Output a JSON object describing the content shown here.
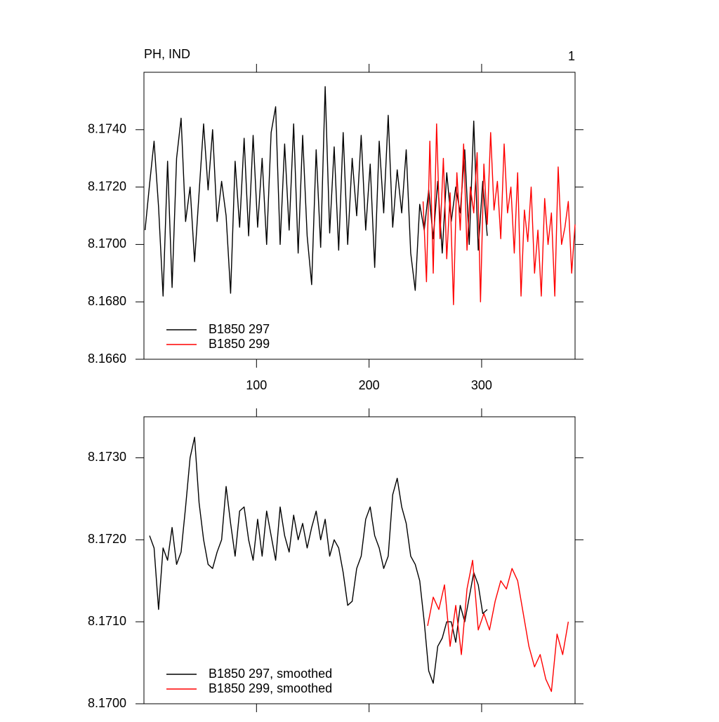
{
  "chart_data": [
    {
      "type": "line",
      "title": "PH, IND",
      "right_title": "1",
      "xlim": [
        0,
        383
      ],
      "ylim": [
        8.166,
        8.176
      ],
      "xticks": [
        100,
        200,
        300
      ],
      "show_xtick_labels": true,
      "yticks": [
        {
          "value": 8.166,
          "label": "8.1660"
        },
        {
          "value": 8.168,
          "label": "8.1680"
        },
        {
          "value": 8.17,
          "label": "8.1700"
        },
        {
          "value": 8.172,
          "label": "8.1720"
        },
        {
          "value": 8.174,
          "label": "8.1740"
        }
      ],
      "series": [
        {
          "name": "B1850 297",
          "color": "#000000",
          "x": [
            1,
            5,
            9,
            13,
            17,
            21,
            25,
            29,
            33,
            37,
            41,
            45,
            49,
            53,
            57,
            61,
            65,
            69,
            73,
            77,
            81,
            85,
            89,
            93,
            97,
            101,
            105,
            109,
            113,
            117,
            121,
            125,
            129,
            133,
            137,
            141,
            145,
            149,
            153,
            157,
            161,
            165,
            169,
            173,
            177,
            181,
            185,
            189,
            193,
            197,
            201,
            205,
            209,
            213,
            217,
            221,
            225,
            229,
            233,
            237,
            241,
            245,
            249,
            253,
            257,
            261,
            265,
            269,
            273,
            277,
            281,
            285,
            289,
            293,
            297,
            301,
            305
          ],
          "values": [
            8.1705,
            8.1721,
            8.1736,
            8.1713,
            8.1682,
            8.1729,
            8.1685,
            8.173,
            8.1744,
            8.1708,
            8.172,
            8.1694,
            8.1718,
            8.1742,
            8.1719,
            8.174,
            8.1708,
            8.1722,
            8.171,
            8.1683,
            8.1729,
            8.1706,
            8.1737,
            8.1703,
            8.1738,
            8.1706,
            8.173,
            8.17,
            8.1739,
            8.1748,
            8.17,
            8.1735,
            8.1705,
            8.1742,
            8.1697,
            8.1738,
            8.1703,
            8.1686,
            8.1733,
            8.1699,
            8.1755,
            8.1704,
            8.1734,
            8.1698,
            8.1739,
            8.17,
            8.173,
            8.171,
            8.1738,
            8.1705,
            8.1728,
            8.1692,
            8.1736,
            8.1711,
            8.1745,
            8.1706,
            8.1726,
            8.1711,
            8.1733,
            8.1697,
            8.1684,
            8.1714,
            8.1705,
            8.1719,
            8.1702,
            8.1722,
            8.1697,
            8.1725,
            8.1708,
            8.172,
            8.1711,
            8.1733,
            8.17,
            8.1743,
            8.1698,
            8.1722,
            8.1703
          ]
        },
        {
          "name": "B1850 299",
          "color": "#ff0000",
          "x": [
            248,
            251,
            254,
            257,
            260,
            263,
            266,
            269,
            272,
            275,
            278,
            281,
            284,
            287,
            290,
            293,
            296,
            299,
            302,
            305,
            308,
            311,
            314,
            317,
            320,
            323,
            326,
            329,
            332,
            335,
            338,
            341,
            344,
            347,
            350,
            353,
            356,
            359,
            362,
            365,
            368,
            371,
            374,
            377,
            380,
            383
          ],
          "values": [
            8.1715,
            8.1687,
            8.1736,
            8.169,
            8.1742,
            8.1702,
            8.173,
            8.1695,
            8.1718,
            8.1679,
            8.1725,
            8.1705,
            8.1735,
            8.1698,
            8.172,
            8.1711,
            8.1732,
            8.168,
            8.1728,
            8.1707,
            8.1739,
            8.1712,
            8.1722,
            8.1702,
            8.1735,
            8.1711,
            8.172,
            8.1697,
            8.1725,
            8.1682,
            8.1712,
            8.1701,
            8.172,
            8.169,
            8.1705,
            8.1682,
            8.1716,
            8.17,
            8.1711,
            8.1682,
            8.1727,
            8.17,
            8.1706,
            8.1715,
            8.169,
            8.1707
          ]
        }
      ]
    },
    {
      "type": "line",
      "xlim": [
        0,
        383
      ],
      "ylim": [
        8.17,
        8.1735
      ],
      "xticks": [
        100,
        200,
        300
      ],
      "show_xtick_labels": false,
      "yticks": [
        {
          "value": 8.17,
          "label": "8.1700"
        },
        {
          "value": 8.171,
          "label": "8.1710"
        },
        {
          "value": 8.172,
          "label": "8.1720"
        },
        {
          "value": 8.173,
          "label": "8.1730"
        }
      ],
      "series": [
        {
          "name": "B1850 297, smoothed",
          "color": "#000000",
          "x": [
            5,
            9,
            13,
            17,
            21,
            25,
            29,
            33,
            37,
            41,
            45,
            49,
            53,
            57,
            61,
            65,
            69,
            73,
            77,
            81,
            85,
            89,
            93,
            97,
            101,
            105,
            109,
            113,
            117,
            121,
            125,
            129,
            133,
            137,
            141,
            145,
            149,
            153,
            157,
            161,
            165,
            169,
            173,
            177,
            181,
            185,
            189,
            193,
            197,
            201,
            205,
            209,
            213,
            217,
            221,
            225,
            229,
            233,
            237,
            241,
            245,
            249,
            253,
            257,
            261,
            265,
            269,
            273,
            277,
            281,
            285,
            289,
            293,
            297,
            301,
            305
          ],
          "values": [
            8.17205,
            8.1719,
            8.17115,
            8.1719,
            8.17175,
            8.17215,
            8.1717,
            8.17185,
            8.1724,
            8.173,
            8.17325,
            8.17245,
            8.172,
            8.1717,
            8.17165,
            8.17185,
            8.172,
            8.17265,
            8.1722,
            8.1718,
            8.17235,
            8.1724,
            8.172,
            8.17175,
            8.17225,
            8.1718,
            8.17235,
            8.17205,
            8.17175,
            8.1724,
            8.17205,
            8.17185,
            8.1723,
            8.172,
            8.1722,
            8.1719,
            8.17215,
            8.17235,
            8.172,
            8.17225,
            8.1718,
            8.172,
            8.1719,
            8.1716,
            8.1712,
            8.17125,
            8.17165,
            8.1718,
            8.17225,
            8.1724,
            8.17205,
            8.1719,
            8.17165,
            8.1718,
            8.17255,
            8.17275,
            8.1724,
            8.1722,
            8.1718,
            8.1717,
            8.1715,
            8.171,
            8.1704,
            8.17025,
            8.1707,
            8.1708,
            8.171,
            8.171,
            8.17075,
            8.1712,
            8.171,
            8.1713,
            8.1716,
            8.17145,
            8.1711,
            8.17115
          ]
        },
        {
          "name": "B1850 299, smoothed",
          "color": "#ff0000",
          "x": [
            252,
            257,
            262,
            267,
            272,
            277,
            282,
            287,
            292,
            297,
            302,
            307,
            312,
            317,
            322,
            327,
            332,
            337,
            342,
            347,
            352,
            357,
            362,
            367,
            372,
            377
          ],
          "values": [
            8.17095,
            8.1713,
            8.17115,
            8.17145,
            8.1707,
            8.1712,
            8.1706,
            8.1714,
            8.17175,
            8.1709,
            8.1711,
            8.1709,
            8.17125,
            8.1715,
            8.1714,
            8.17165,
            8.1715,
            8.1711,
            8.1707,
            8.17045,
            8.1706,
            8.1703,
            8.17015,
            8.17085,
            8.1706,
            8.171
          ]
        }
      ]
    }
  ]
}
